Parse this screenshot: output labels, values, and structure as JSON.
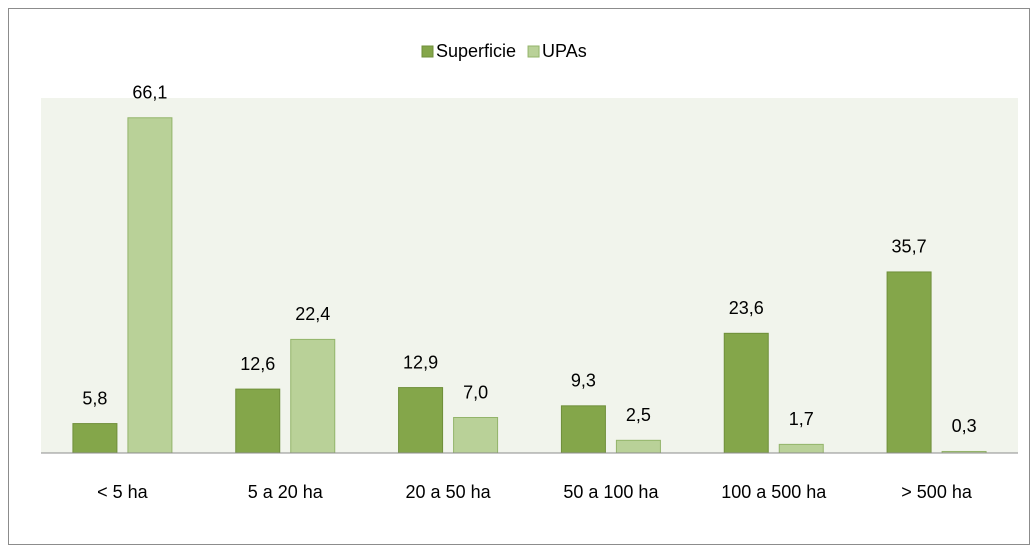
{
  "chart_data": {
    "type": "bar",
    "categories": [
      "< 5 ha",
      "5 a 20 ha",
      "20 a 50 ha",
      "50 a 100 ha",
      "100 a 500 ha",
      "> 500 ha"
    ],
    "series": [
      {
        "name": "Superficie",
        "color": "#84a64a",
        "values": [
          5.8,
          12.6,
          12.9,
          9.3,
          23.6,
          35.7
        ],
        "value_labels": [
          "5,8",
          "12,6",
          "12,9",
          "9,3",
          "23,6",
          "35,7"
        ]
      },
      {
        "name": "UPAs",
        "color": "#b9d198",
        "values": [
          66.1,
          22.4,
          7.0,
          2.5,
          1.7,
          0.3
        ],
        "value_labels": [
          "66,1",
          "22,4",
          "7,0",
          "2,5",
          "1,7",
          "0,3"
        ]
      }
    ],
    "ylim": [
      0,
      70
    ],
    "legend": "top"
  }
}
